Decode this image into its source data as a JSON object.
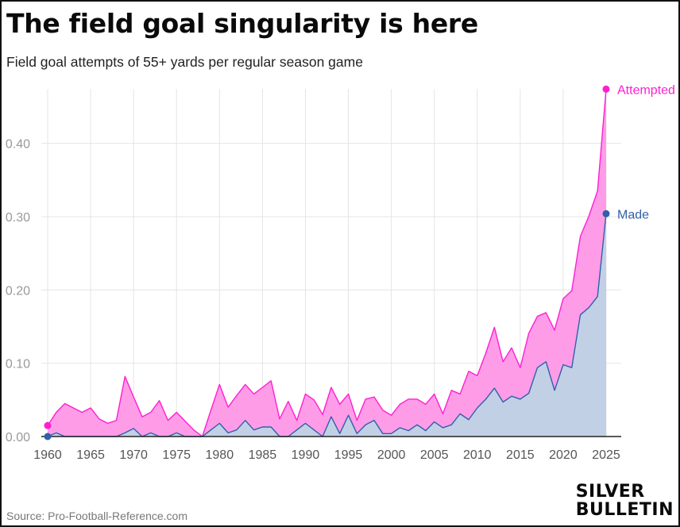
{
  "title": "The field goal singularity is here",
  "subtitle": "Field goal attempts of 55+ yards per regular season game",
  "source": "Source: Pro-Football-Reference.com",
  "logo": {
    "line1": "SILVER",
    "line2": "BULLETIN"
  },
  "colors": {
    "attempted": "#ff1fd0",
    "attempted_fill": "#ff9ce8",
    "made": "#3060a8",
    "made_fill": "#c2d0e6"
  },
  "chart_data": {
    "type": "area",
    "x": [
      1960,
      1961,
      1962,
      1963,
      1964,
      1965,
      1966,
      1967,
      1968,
      1969,
      1970,
      1971,
      1972,
      1973,
      1974,
      1975,
      1976,
      1977,
      1978,
      1979,
      1980,
      1981,
      1982,
      1983,
      1984,
      1985,
      1986,
      1987,
      1988,
      1989,
      1990,
      1991,
      1992,
      1993,
      1994,
      1995,
      1996,
      1997,
      1998,
      1999,
      2000,
      2001,
      2002,
      2003,
      2004,
      2005,
      2006,
      2007,
      2008,
      2009,
      2010,
      2011,
      2012,
      2013,
      2014,
      2015,
      2016,
      2017,
      2018,
      2019,
      2020,
      2021,
      2022,
      2023,
      2024,
      2025
    ],
    "series": [
      {
        "name": "Attempted",
        "values": [
          0.015,
          0.033,
          0.045,
          0.039,
          0.033,
          0.039,
          0.024,
          0.018,
          0.022,
          0.082,
          0.054,
          0.027,
          0.033,
          0.049,
          0.022,
          0.033,
          0.021,
          0.009,
          0.0,
          0.036,
          0.071,
          0.04,
          0.056,
          0.071,
          0.058,
          0.067,
          0.076,
          0.024,
          0.048,
          0.022,
          0.058,
          0.05,
          0.03,
          0.067,
          0.044,
          0.058,
          0.022,
          0.051,
          0.054,
          0.036,
          0.029,
          0.044,
          0.051,
          0.051,
          0.044,
          0.058,
          0.031,
          0.063,
          0.058,
          0.089,
          0.083,
          0.114,
          0.149,
          0.102,
          0.121,
          0.094,
          0.141,
          0.164,
          0.169,
          0.145,
          0.188,
          0.199,
          0.273,
          0.301,
          0.335,
          0.474
        ]
      },
      {
        "name": "Made",
        "values": [
          0.0,
          0.005,
          0.0,
          0.0,
          0.0,
          0.0,
          0.0,
          0.0,
          0.0,
          0.005,
          0.011,
          0.0,
          0.005,
          0.0,
          0.0,
          0.005,
          0.0,
          0.0,
          0.0,
          0.009,
          0.018,
          0.005,
          0.009,
          0.022,
          0.009,
          0.013,
          0.013,
          0.0,
          0.0,
          0.009,
          0.018,
          0.009,
          0.0,
          0.027,
          0.004,
          0.029,
          0.004,
          0.016,
          0.022,
          0.004,
          0.004,
          0.012,
          0.008,
          0.016,
          0.008,
          0.02,
          0.012,
          0.016,
          0.031,
          0.023,
          0.039,
          0.051,
          0.066,
          0.047,
          0.055,
          0.051,
          0.059,
          0.094,
          0.102,
          0.063,
          0.098,
          0.094,
          0.166,
          0.176,
          0.191,
          0.304
        ]
      }
    ],
    "xticks": [
      "1960",
      "1965",
      "1970",
      "1975",
      "1980",
      "1985",
      "1990",
      "1995",
      "2000",
      "2005",
      "2010",
      "2015",
      "2020",
      "2025"
    ],
    "yticks": [
      "0.00",
      "0.10",
      "0.20",
      "0.30",
      "0.40"
    ],
    "xlim": [
      1960,
      2025
    ],
    "ylim": [
      0,
      0.48
    ],
    "grid": true,
    "xlabel": "",
    "ylabel": ""
  }
}
